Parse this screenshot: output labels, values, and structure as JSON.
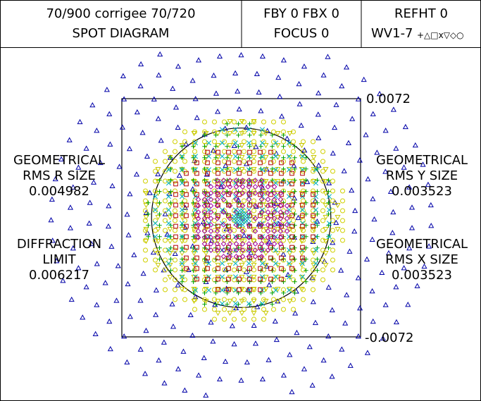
{
  "header": {
    "title": "70/900  corrigee 70/720",
    "subtitle": "SPOT DIAGRAM",
    "field": "FBY 0 FBX 0",
    "focus": "FOCUS 0",
    "refht": "REFHT 0",
    "wavelengths": "WV1-7",
    "wavelength_symbols": "+△□x▽◇○"
  },
  "scale": {
    "top_label": "0.0072",
    "bottom_label": "-0.0072"
  },
  "left_panel": {
    "rms_r_line1": "GEOMETRICAL",
    "rms_r_line2": "RMS R SIZE",
    "rms_r_value": "0.004982",
    "diffraction_line1": "DIFFRACTION",
    "diffraction_line2": "LIMIT",
    "diffraction_value": "0.006217"
  },
  "right_panel": {
    "rms_y_line1": "GEOMETRICAL",
    "rms_y_line2": "RMS Y SIZE",
    "rms_y_value": "0.003523",
    "rms_x_line1": "GEOMETRICAL",
    "rms_x_line2": "RMS X SIZE",
    "rms_x_value": "0.003523"
  },
  "colors": {
    "line": "#000000",
    "wv1_plus": "#00a000",
    "wv2_triangle": "#0000a8",
    "wv3_square": "#b00000",
    "wv4_cross": "#00b0c0",
    "wv5_triangle_down": "#c8c800",
    "wv6_diamond": "#a000a0",
    "wv7_circle": "#d0d000"
  },
  "diagram": {
    "half_width": 0.0072,
    "diffraction_radius": 0.006217
  }
}
